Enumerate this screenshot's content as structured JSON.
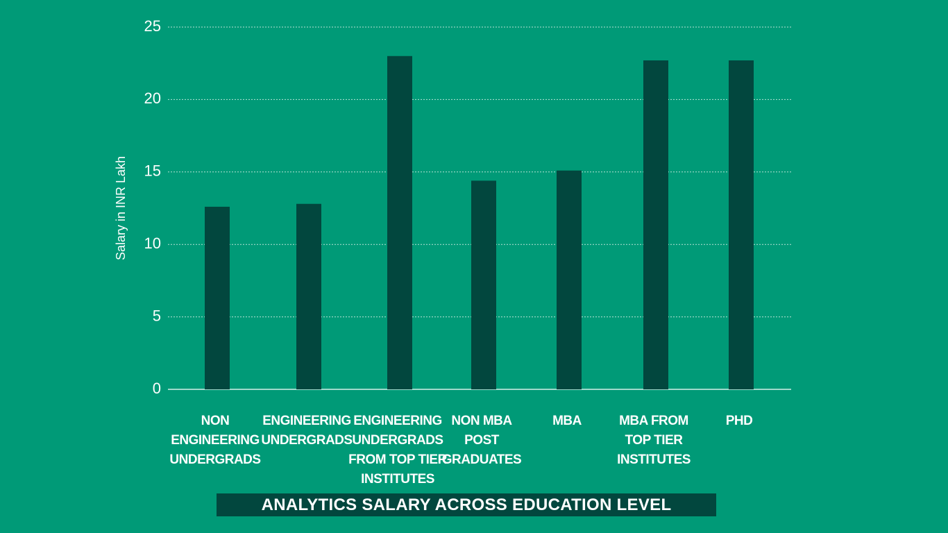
{
  "chart_data": {
    "type": "bar",
    "title": "ANALYTICS SALARY ACROSS EDUCATION LEVEL",
    "xlabel": "",
    "ylabel": "Salary in INR Lakh",
    "ylim": [
      0,
      25
    ],
    "yticks": [
      0,
      5,
      10,
      15,
      20,
      25
    ],
    "grid": true,
    "categories": [
      "NON ENGINEERING UNDERGRADS",
      "ENGINEERING UNDERGRADS",
      "ENGINEERING UNDERGRADS FROM TOP TIER INSTITUTES",
      "NON MBA POST GRADUATES",
      "MBA",
      "MBA FROM TOP TIER INSTITUTES",
      "PHD"
    ],
    "category_lines": [
      [
        "NON",
        "ENGINEERING",
        "UNDERGRADS"
      ],
      [
        "ENGINEERING",
        "UNDERGRADS"
      ],
      [
        "ENGINEERING",
        "UNDERGRADS",
        "FROM TOP TIER",
        "INSTITUTES"
      ],
      [
        "NON MBA",
        "POST",
        "GRADUATES"
      ],
      [
        "MBA"
      ],
      [
        "MBA FROM",
        "TOP TIER",
        "INSTITUTES"
      ],
      [
        "PHD"
      ]
    ],
    "values": [
      12.6,
      12.8,
      23.0,
      14.4,
      15.1,
      22.7,
      22.7
    ],
    "colors": {
      "background": "#009a77",
      "bar": "#02473e",
      "grid": "#b8e3d6",
      "axis": "#ffffff",
      "title_bg": "#02473e"
    }
  }
}
